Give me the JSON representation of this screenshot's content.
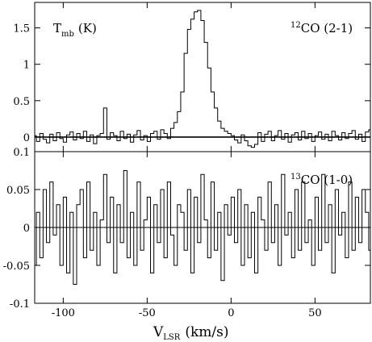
{
  "chart_data": [
    {
      "type": "line",
      "style": "step",
      "panel": "top",
      "xlim": [
        -117,
        83
      ],
      "ylim": [
        -0.2,
        1.85
      ],
      "yticks": [
        -0.0,
        0.5,
        1,
        1.5
      ],
      "ytick_labels": [
        "0",
        "0.5",
        "1",
        "1.5"
      ],
      "ylabel_main": "T",
      "ylabel_sub": "mb",
      "ylabel_unit": "(K)",
      "label_sup": "12",
      "label_main": "CO (2-1)",
      "x": [
        -117,
        -115,
        -113,
        -111,
        -109,
        -107,
        -105,
        -103,
        -101,
        -99,
        -97,
        -95,
        -93,
        -91,
        -89,
        -87,
        -85,
        -83,
        -81,
        -79,
        -77,
        -75,
        -73,
        -71,
        -69,
        -67,
        -65,
        -63,
        -61,
        -59,
        -57,
        -55,
        -53,
        -51,
        -49,
        -47,
        -45,
        -43,
        -41,
        -39,
        -37,
        -35,
        -33,
        -31,
        -29,
        -27,
        -25,
        -23,
        -21,
        -19,
        -17,
        -15,
        -13,
        -11,
        -9,
        -7,
        -5,
        -3,
        -1,
        1,
        3,
        5,
        7,
        9,
        11,
        13,
        15,
        17,
        19,
        21,
        23,
        25,
        27,
        29,
        31,
        33,
        35,
        37,
        39,
        41,
        43,
        45,
        47,
        49,
        51,
        53,
        55,
        57,
        59,
        61,
        63,
        65,
        67,
        69,
        71,
        73,
        75,
        77,
        79,
        81,
        83
      ],
      "y": [
        0.02,
        -0.06,
        0.05,
        -0.03,
        -0.08,
        0.04,
        -0.05,
        0.06,
        -0.02,
        -0.07,
        0.03,
        0.07,
        -0.04,
        0.05,
        -0.02,
        0.08,
        -0.06,
        0.03,
        -0.09,
        0.02,
        0.05,
        0.4,
        -0.03,
        0.06,
        0.02,
        -0.05,
        0.08,
        -0.02,
        0.04,
        -0.07,
        0.03,
        0.09,
        -0.04,
        0.02,
        -0.06,
        0.05,
        0.08,
        -0.03,
        0.1,
        0.05,
        -0.02,
        0.12,
        0.2,
        0.35,
        0.62,
        1.15,
        1.48,
        1.62,
        1.72,
        1.74,
        1.6,
        1.3,
        0.95,
        0.62,
        0.4,
        0.22,
        0.12,
        0.08,
        0.05,
        0.02,
        -0.04,
        -0.08,
        0.03,
        -0.05,
        -0.12,
        -0.14,
        -0.1,
        0.06,
        -0.06,
        0.04,
        0.08,
        -0.05,
        0.02,
        0.09,
        -0.03,
        0.05,
        -0.07,
        0.03,
        0.06,
        -0.04,
        0.08,
        -0.02,
        0.05,
        -0.06,
        0.02,
        0.07,
        -0.03,
        0.04,
        -0.05,
        0.08,
        0.02,
        -0.04,
        0.06,
        -0.02,
        0.05,
        0.09,
        -0.03,
        0.04,
        -0.06,
        0.07,
        0.1
      ]
    },
    {
      "type": "line",
      "style": "step",
      "panel": "bottom",
      "xlim": [
        -117,
        83
      ],
      "ylim": [
        -0.1,
        0.1
      ],
      "yticks": [
        -0.1,
        -0.05,
        0,
        0.05,
        0.1
      ],
      "ytick_labels": [
        "-0.1",
        "-0.05",
        "0",
        "0.05",
        "0.1"
      ],
      "label_sup": "13",
      "label_main": "CO (1-0)",
      "x": [
        -117,
        -115,
        -113,
        -111,
        -109,
        -107,
        -105,
        -103,
        -101,
        -99,
        -97,
        -95,
        -93,
        -91,
        -89,
        -87,
        -85,
        -83,
        -81,
        -79,
        -77,
        -75,
        -73,
        -71,
        -69,
        -67,
        -65,
        -63,
        -61,
        -59,
        -57,
        -55,
        -53,
        -51,
        -49,
        -47,
        -45,
        -43,
        -41,
        -39,
        -37,
        -35,
        -33,
        -31,
        -29,
        -27,
        -25,
        -23,
        -21,
        -19,
        -17,
        -15,
        -13,
        -11,
        -9,
        -7,
        -5,
        -3,
        -1,
        1,
        3,
        5,
        7,
        9,
        11,
        13,
        15,
        17,
        19,
        21,
        23,
        25,
        27,
        29,
        31,
        33,
        35,
        37,
        39,
        41,
        43,
        45,
        47,
        49,
        51,
        53,
        55,
        57,
        59,
        61,
        63,
        65,
        67,
        69,
        71,
        73,
        75,
        77,
        79,
        81,
        83
      ],
      "y": [
        -0.05,
        0.02,
        -0.04,
        0.05,
        -0.02,
        0.06,
        -0.01,
        0.03,
        -0.05,
        0.04,
        -0.06,
        0.02,
        -0.075,
        0.03,
        0.05,
        -0.04,
        0.06,
        -0.03,
        0.02,
        -0.05,
        0.01,
        0.07,
        -0.02,
        0.04,
        -0.06,
        0.03,
        -0.02,
        0.075,
        -0.04,
        0.02,
        -0.05,
        0.06,
        -0.03,
        0.01,
        0.04,
        -0.06,
        0.03,
        -0.02,
        0.05,
        -0.04,
        0.06,
        -0.01,
        -0.05,
        0.03,
        0.02,
        -0.03,
        0.05,
        -0.06,
        0.04,
        -0.02,
        0.07,
        0.01,
        -0.04,
        0.06,
        -0.03,
        0.02,
        -0.07,
        0.03,
        -0.01,
        0.04,
        -0.02,
        0.05,
        -0.05,
        0.03,
        -0.04,
        0.02,
        -0.06,
        0.04,
        0.01,
        -0.03,
        0.06,
        -0.02,
        0.03,
        -0.05,
        0.07,
        -0.01,
        0.02,
        -0.04,
        0.05,
        -0.03,
        0.06,
        -0.02,
        0.01,
        -0.05,
        0.04,
        -0.03,
        0.07,
        -0.02,
        0.03,
        -0.06,
        0.05,
        -0.01,
        0.02,
        -0.04,
        0.06,
        -0.03,
        0.04,
        -0.02,
        0.05,
        0.02,
        -0.03
      ]
    }
  ],
  "x_axis": {
    "ticks": [
      -100,
      -50,
      0,
      50
    ],
    "tick_labels": [
      "-100",
      "-50",
      "0",
      "50"
    ],
    "label_main": "V",
    "label_sub": "LSR",
    "label_unit": "(km/s)"
  }
}
